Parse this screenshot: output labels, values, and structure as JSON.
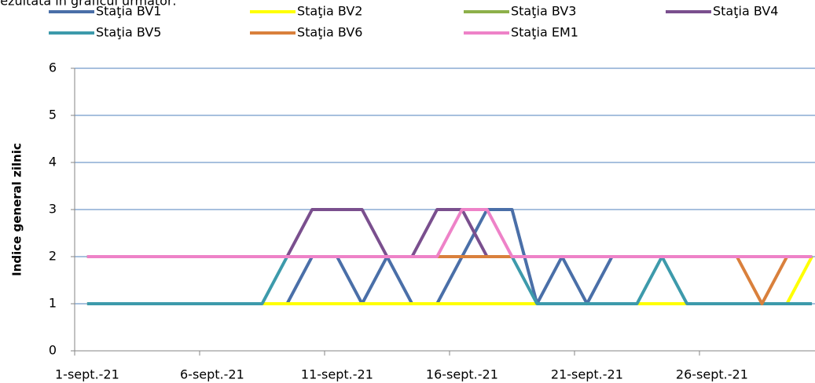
{
  "intro_text": "rezultată în graficul următor:",
  "chart_data": {
    "type": "line",
    "y_label": "Indice general zilnic",
    "categories": [
      "1-sept.-21",
      null,
      null,
      null,
      null,
      "6-sept.-21",
      null,
      null,
      null,
      null,
      "11-sept.-21",
      null,
      null,
      null,
      null,
      "16-sept.-21",
      null,
      null,
      null,
      null,
      "21-sept.-21",
      null,
      null,
      null,
      null,
      "26-sept.-21",
      null,
      null,
      null,
      null
    ],
    "ylim": [
      0,
      6
    ],
    "yticks": [
      0,
      1,
      2,
      3,
      4,
      5,
      6
    ],
    "grid": true,
    "series": [
      {
        "name": "Staţia BV1",
        "color": "#4a6fa8",
        "values": [
          1,
          1,
          1,
          1,
          1,
          1,
          1,
          1,
          1,
          2,
          2,
          1,
          2,
          1,
          1,
          2,
          3,
          3,
          1,
          2,
          1,
          2,
          2,
          2,
          2,
          2,
          2,
          2,
          2,
          2
        ]
      },
      {
        "name": "Staţia BV2",
        "color": "#ffff00",
        "values": [
          1,
          1,
          1,
          1,
          1,
          1,
          1,
          1,
          1,
          1,
          1,
          1,
          1,
          1,
          1,
          1,
          1,
          1,
          1,
          1,
          1,
          1,
          1,
          1,
          1,
          1,
          1,
          1,
          1,
          2
        ]
      },
      {
        "name": "Staţia BV3",
        "color": "#8db04a",
        "values": [
          2,
          2,
          2,
          2,
          2,
          2,
          2,
          2,
          2,
          2,
          2,
          2,
          2,
          2,
          2,
          2,
          2,
          2,
          2,
          2,
          2,
          2,
          2,
          2,
          2,
          2,
          2,
          2,
          2,
          2
        ]
      },
      {
        "name": "Staţia BV4",
        "color": "#7a4f8e",
        "values": [
          2,
          2,
          2,
          2,
          2,
          2,
          2,
          2,
          2,
          3,
          3,
          3,
          2,
          2,
          3,
          3,
          2,
          2,
          2,
          2,
          2,
          2,
          2,
          2,
          2,
          2,
          2,
          2,
          2,
          2
        ]
      },
      {
        "name": "Staţia BV5",
        "color": "#3d9aab",
        "values": [
          1,
          1,
          1,
          1,
          1,
          1,
          1,
          1,
          2,
          2,
          2,
          2,
          2,
          2,
          2,
          2,
          2,
          2,
          1,
          1,
          1,
          1,
          1,
          2,
          1,
          1,
          1,
          1,
          1,
          1
        ]
      },
      {
        "name": "Staţia BV6",
        "color": "#d9803c",
        "values": [
          2,
          2,
          2,
          2,
          2,
          2,
          2,
          2,
          2,
          2,
          2,
          2,
          2,
          2,
          2,
          2,
          2,
          2,
          2,
          2,
          2,
          2,
          2,
          2,
          2,
          2,
          2,
          1,
          2,
          2
        ]
      },
      {
        "name": "Staţia EM1",
        "color": "#ee82c8",
        "values": [
          2,
          2,
          2,
          2,
          2,
          2,
          2,
          2,
          2,
          2,
          2,
          2,
          2,
          2,
          2,
          3,
          3,
          2,
          2,
          2,
          2,
          2,
          2,
          2,
          2,
          2,
          2,
          2,
          2,
          2
        ]
      }
    ]
  }
}
